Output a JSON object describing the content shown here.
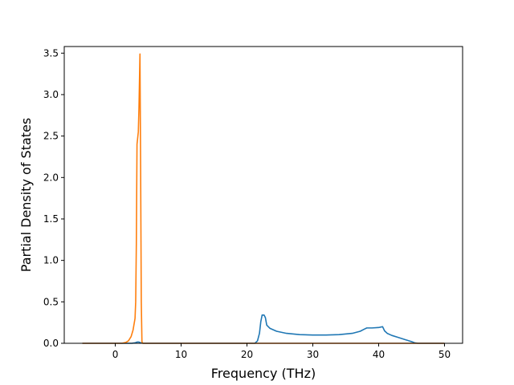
{
  "chart_data": {
    "type": "line",
    "title": "",
    "xlabel": "Frequency (THz)",
    "ylabel": "Partial Density of States",
    "xlim": [
      -7.75,
      52.75
    ],
    "ylim": [
      0,
      3.58
    ],
    "xticks": [
      0,
      10,
      20,
      30,
      40,
      50
    ],
    "xtick_labels": [
      "0",
      "10",
      "20",
      "30",
      "40",
      "50"
    ],
    "yticks": [
      0.0,
      0.5,
      1.0,
      1.5,
      2.0,
      2.5,
      3.0,
      3.5
    ],
    "ytick_labels": [
      "0.0",
      "0.5",
      "1.0",
      "1.5",
      "2.0",
      "2.5",
      "3.0",
      "3.5"
    ],
    "grid": false,
    "legend": "none",
    "series": [
      {
        "color": "#1f77b4",
        "x": [
          -5,
          2.5,
          3.0,
          3.3,
          3.6,
          3.9,
          4.3,
          20,
          21.2,
          21.6,
          21.9,
          22.1,
          22.3,
          22.6,
          22.8,
          23.0,
          23.5,
          24.5,
          26,
          28,
          30,
          32,
          34,
          36,
          37.2,
          37.8,
          38.2,
          39,
          40,
          40.6,
          40.9,
          41.3,
          42,
          43,
          44,
          45,
          45.5,
          46,
          50
        ],
        "y": [
          0,
          0,
          0.005,
          0.015,
          0.015,
          0.005,
          0,
          0,
          0,
          0.03,
          0.12,
          0.26,
          0.34,
          0.34,
          0.31,
          0.22,
          0.18,
          0.145,
          0.12,
          0.105,
          0.1,
          0.1,
          0.105,
          0.12,
          0.145,
          0.17,
          0.185,
          0.185,
          0.19,
          0.2,
          0.15,
          0.12,
          0.095,
          0.07,
          0.045,
          0.02,
          0.005,
          0,
          0
        ]
      },
      {
        "color": "#ff7f0e",
        "x": [
          -5,
          1.0,
          1.6,
          2.0,
          2.4,
          2.7,
          3.0,
          3.1,
          3.2,
          3.3,
          3.5,
          3.6,
          3.75,
          3.85,
          3.95,
          4.05,
          4.15,
          4.2,
          50
        ],
        "y": [
          0,
          0,
          0.01,
          0.03,
          0.08,
          0.16,
          0.3,
          0.5,
          1.2,
          2.4,
          2.55,
          2.85,
          3.49,
          2.1,
          0.5,
          0.02,
          0,
          0,
          0
        ]
      }
    ]
  }
}
